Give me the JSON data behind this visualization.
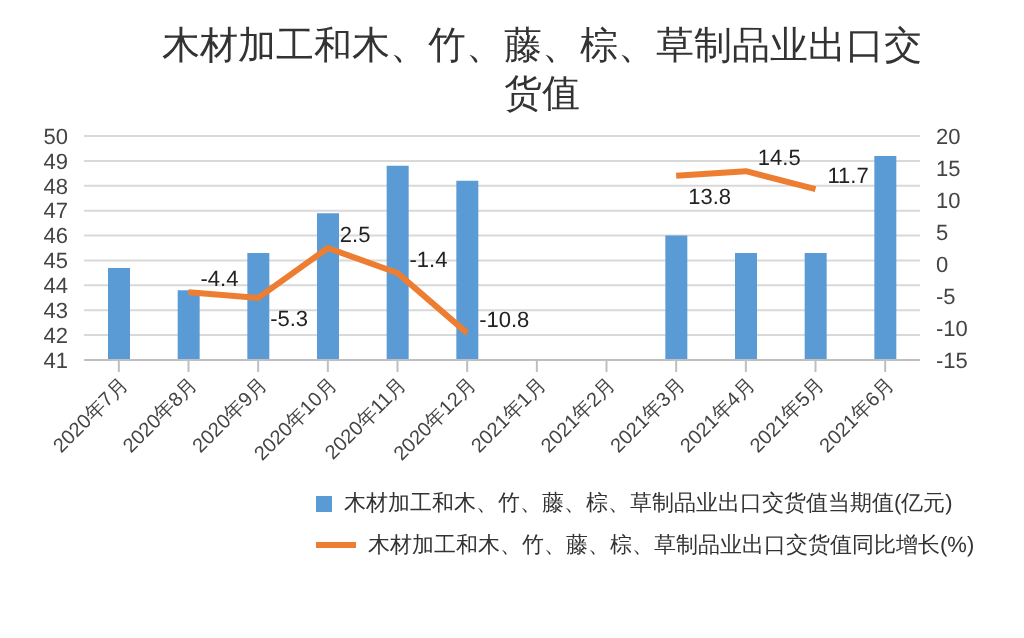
{
  "chart_data": {
    "type": "bar",
    "title": "木材加工和木、竹、藤、棕、草制品业出口交货值",
    "categories": [
      "2020年7月",
      "2020年8月",
      "2020年9月",
      "2020年10月",
      "2020年11月",
      "2020年12月",
      "2021年1月",
      "2021年2月",
      "2021年3月",
      "2021年4月",
      "2021年5月",
      "2021年6月"
    ],
    "series": [
      {
        "name": "木材加工和木、竹、藤、棕、草制品业出口交货值当期值(亿元)",
        "color": "#5b9bd5",
        "values": [
          44.7,
          43.8,
          45.3,
          46.9,
          48.8,
          48.2,
          null,
          null,
          46.0,
          45.3,
          45.3,
          49.2
        ]
      },
      {
        "name": "木材加工和木、竹、藤、棕、草制品业出口交货值同比增长(%)",
        "type": "line",
        "axis": "y2",
        "color": "#ed7d31",
        "values": [
          null,
          -4.4,
          -5.3,
          2.5,
          -1.4,
          -10.8,
          null,
          null,
          13.8,
          14.5,
          11.7,
          null
        ],
        "value_labels": [
          null,
          "-4.4",
          "-5.3",
          "2.5",
          "-1.4",
          "-10.8",
          null,
          null,
          "13.8",
          "14.5",
          "11.7",
          null
        ]
      }
    ],
    "ylim": [
      41,
      50
    ],
    "yticks": [
      41,
      42,
      43,
      44,
      45,
      46,
      47,
      48,
      49,
      50
    ],
    "y2lim": [
      -15,
      20
    ],
    "y2ticks": [
      -15,
      -10,
      -5,
      0,
      5,
      10,
      15,
      20
    ],
    "grid": "y",
    "legend": "bottom",
    "marker": "none",
    "line_style": "solid"
  }
}
